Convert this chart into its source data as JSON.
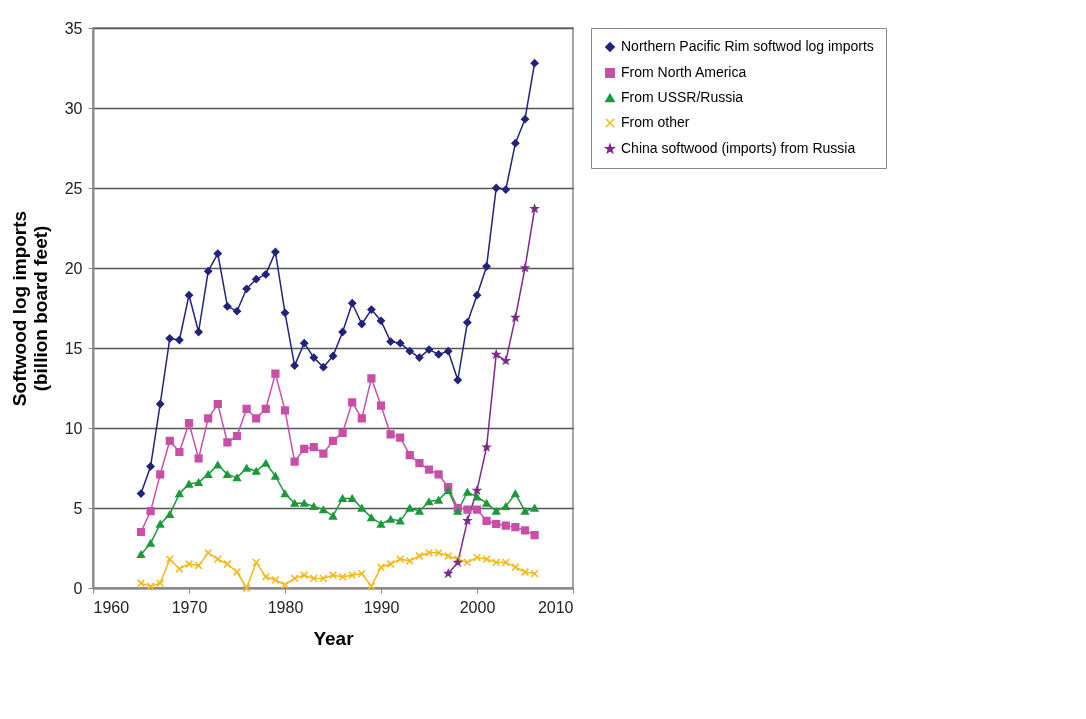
{
  "chart_data": {
    "type": "line",
    "xlabel": "Year",
    "ylabel": "Softwood log imports (billion board feet)",
    "xlim": [
      1960,
      2010
    ],
    "xticks": [
      1960,
      1970,
      1980,
      1990,
      2000,
      2010
    ],
    "ylim": [
      0,
      35
    ],
    "yticks": [
      0,
      5,
      10,
      15,
      20,
      25,
      30,
      35
    ],
    "grid": "y",
    "legend": "right",
    "x": [
      1965,
      1966,
      1967,
      1968,
      1969,
      1970,
      1971,
      1972,
      1973,
      1974,
      1975,
      1976,
      1977,
      1978,
      1979,
      1980,
      1981,
      1982,
      1983,
      1984,
      1985,
      1986,
      1987,
      1988,
      1989,
      1990,
      1991,
      1992,
      1993,
      1994,
      1995,
      1996,
      1997,
      1998,
      1999,
      2000,
      2001,
      2002,
      2003,
      2004,
      2005,
      2006
    ],
    "series": [
      {
        "name": "Northern Pacific Rim softwod log imports",
        "color": "#22237b",
        "marker": "diamond",
        "values": [
          5.9,
          7.6,
          11.5,
          15.6,
          15.5,
          18.3,
          16.0,
          19.8,
          20.9,
          17.6,
          17.3,
          18.7,
          19.3,
          19.6,
          21.0,
          17.2,
          13.9,
          15.3,
          14.4,
          13.8,
          14.5,
          16.0,
          17.8,
          16.5,
          17.4,
          16.7,
          15.4,
          15.3,
          14.8,
          14.4,
          14.9,
          14.6,
          14.8,
          13.0,
          16.6,
          18.3,
          20.1,
          25.0,
          24.9,
          27.8,
          29.3,
          32.8
        ]
      },
      {
        "name": "From North America",
        "color": "#c84fa8",
        "marker": "square",
        "values": [
          3.5,
          4.8,
          7.1,
          9.2,
          8.5,
          10.3,
          8.1,
          10.6,
          11.5,
          9.1,
          9.5,
          11.2,
          10.6,
          11.2,
          13.4,
          11.1,
          7.9,
          8.7,
          8.8,
          8.4,
          9.2,
          9.7,
          11.6,
          10.6,
          13.1,
          11.4,
          9.6,
          9.4,
          8.3,
          7.8,
          7.4,
          7.1,
          6.3,
          5.0,
          4.9,
          4.9,
          4.2,
          4.0,
          3.9,
          3.8,
          3.6,
          3.3
        ]
      },
      {
        "name": "From USSR/Russia",
        "color": "#1a9a3a",
        "marker": "triangle",
        "values": [
          2.1,
          2.8,
          4.0,
          4.6,
          5.9,
          6.5,
          6.6,
          7.1,
          7.7,
          7.1,
          6.9,
          7.5,
          7.3,
          7.8,
          7.0,
          5.9,
          5.3,
          5.3,
          5.1,
          4.9,
          4.5,
          5.6,
          5.6,
          5.0,
          4.4,
          4.0,
          4.3,
          4.2,
          5.0,
          4.8,
          5.4,
          5.5,
          6.1,
          4.8,
          6.0,
          5.7,
          5.3,
          4.8,
          5.1,
          5.9,
          4.8,
          5.0
        ]
      },
      {
        "name": "From other",
        "color": "#f5b819",
        "marker": "cross",
        "values": [
          0.3,
          0.1,
          0.3,
          1.8,
          1.2,
          1.5,
          1.4,
          2.2,
          1.8,
          1.5,
          1.0,
          0.0,
          1.6,
          0.7,
          0.5,
          0.2,
          0.6,
          0.8,
          0.6,
          0.6,
          0.8,
          0.7,
          0.8,
          0.9,
          0.1,
          1.3,
          1.5,
          1.8,
          1.7,
          2.0,
          2.2,
          2.2,
          2.0,
          1.8,
          1.6,
          1.9,
          1.8,
          1.6,
          1.6,
          1.3,
          1.0,
          0.9
        ]
      },
      {
        "name": "China softwood (imports) from Russia",
        "color": "#7d2a8a",
        "marker": "star",
        "x": [
          1997,
          1998,
          1999,
          2000,
          2001,
          2002,
          2003,
          2004,
          2005,
          2006
        ],
        "values": [
          0.9,
          1.6,
          4.2,
          6.1,
          8.8,
          14.6,
          14.2,
          16.9,
          20.0,
          23.7
        ]
      }
    ]
  }
}
